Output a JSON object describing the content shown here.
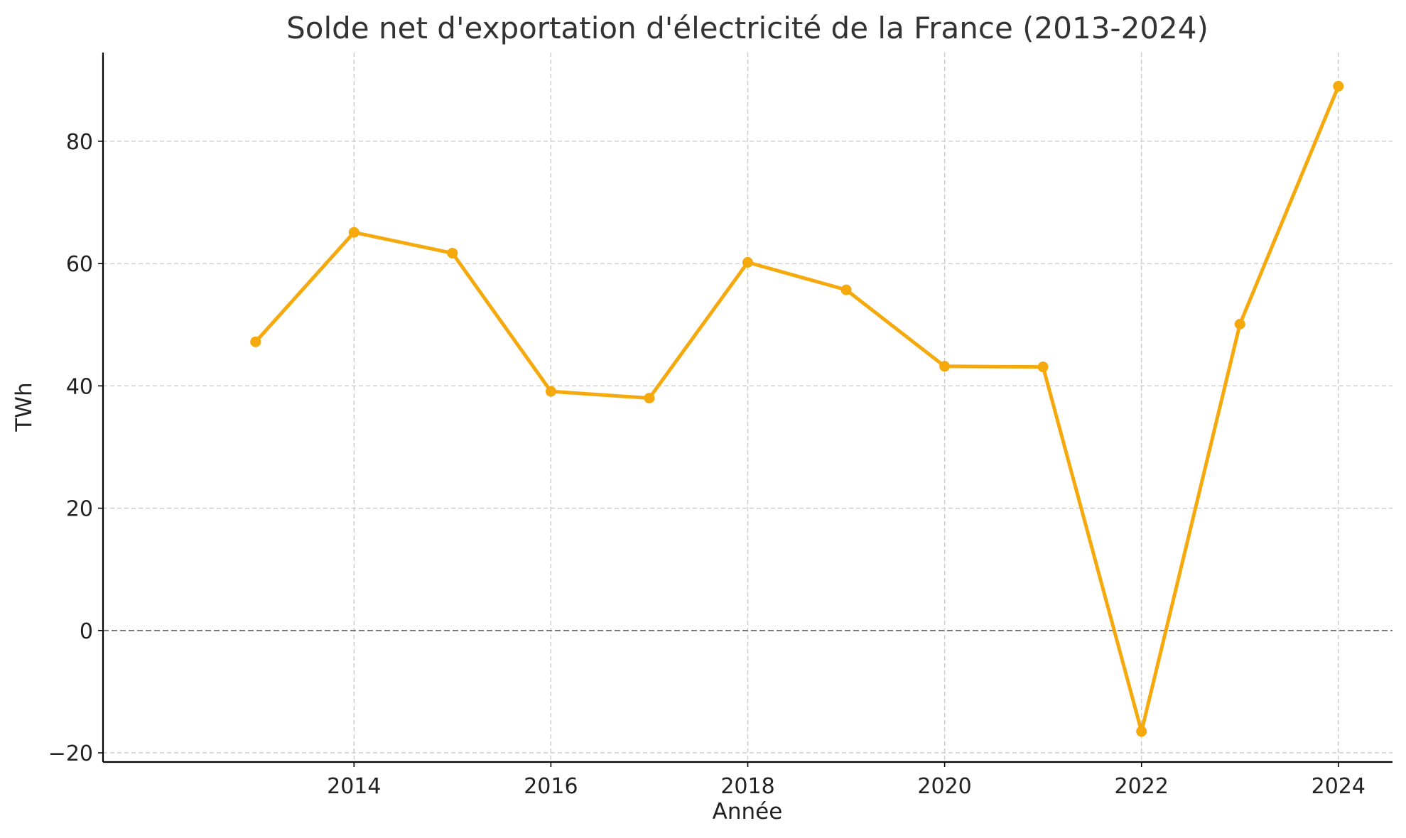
{
  "chart_data": {
    "type": "line",
    "title": "Solde net d'exportation d'électricité de la France (2013-2024)",
    "xlabel": "Année",
    "ylabel": "TWh",
    "x": [
      2013,
      2014,
      2015,
      2016,
      2017,
      2018,
      2019,
      2020,
      2021,
      2022,
      2023,
      2024
    ],
    "series": [
      {
        "values": [
          47.2,
          65.1,
          61.7,
          39.1,
          38.0,
          60.2,
          55.7,
          43.2,
          43.1,
          -16.5,
          50.1,
          89.0
        ],
        "color": "#f5a90c"
      }
    ],
    "xlim": [
      2011.45,
      2024.55
    ],
    "ylim": [
      -21.5,
      94.5
    ],
    "xticks": [
      2014,
      2016,
      2018,
      2020,
      2022,
      2024
    ],
    "yticks": [
      -20,
      0,
      20,
      40,
      60,
      80
    ],
    "ytick_labels": [
      "−20",
      "0",
      "20",
      "40",
      "60",
      "80"
    ],
    "zero_line": true,
    "grid": true,
    "legend": "none"
  }
}
